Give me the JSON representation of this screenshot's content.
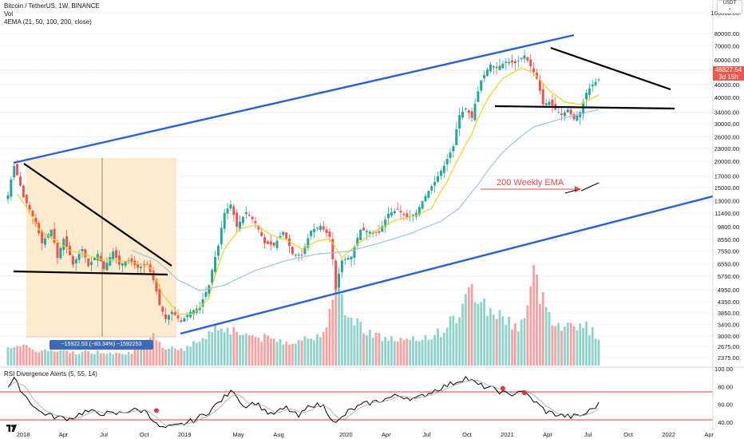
{
  "header": {
    "title": "Bitcoin / TetherUS, 1W, BINANCE",
    "vol_label": "Vol",
    "ema_label": "4EMA (21, 50, 100, 200, close)",
    "currency_button": "USDT"
  },
  "price_tag": {
    "value": "46827.54",
    "countdown": "3d 15h",
    "color": "#e8594f"
  },
  "measure": {
    "label": "−15922.53 (−83.34%) −1592253"
  },
  "annotation": {
    "ema_text": "200 Weekly EMA"
  },
  "rsi_panel": {
    "title": "RSI Divergence Alerts (5, 55, 14)"
  },
  "colors": {
    "up": "#26a69a",
    "down": "#ef5350",
    "channel": "#2a5fd6",
    "ema21": "#f2d024",
    "ema_long": "#9cc3e6",
    "trend": "#000000",
    "measure_box": "#fde8c8",
    "rsi_line": "#e53935"
  },
  "chart_data": {
    "type": "candlestick",
    "title": "Bitcoin / TetherUS, 1W, BINANCE",
    "y_scale": "log",
    "ylim": [
      2175,
      115000
    ],
    "x_range": [
      "2017-12",
      "2022-05"
    ],
    "x_ticks": [
      "2018",
      "Apr",
      "Jul",
      "Oct",
      "2019",
      "May",
      "Aug",
      "2020",
      "Apr",
      "Jul",
      "Oct",
      "2021",
      "Apr",
      "Jul",
      "Oct",
      "2022",
      "Apr"
    ],
    "y_ticks": [
      "100000.00",
      "80000.00",
      "70000.00",
      "60000.00",
      "52000.00",
      "46000.00",
      "40000.00",
      "34000.00",
      "30000.00",
      "26000.00",
      "23000.00",
      "20000.00",
      "17000.00",
      "15000.00",
      "13000.00",
      "11400.00",
      "9800.00",
      "8550.00",
      "7550.00",
      "6550.00",
      "5750.00",
      "4950.00",
      "4350.00",
      "3850.00",
      "3400.00",
      "3000.00",
      "2675.00",
      "2375.00"
    ],
    "last_price": 46827.54,
    "series": [
      {
        "name": "Bitcoin / TetherUS",
        "type": "ohlc",
        "anchors": [
          [
            0,
            13800
          ],
          [
            2,
            19000
          ],
          [
            5,
            13500
          ],
          [
            8,
            11000
          ],
          [
            11,
            8200
          ],
          [
            14,
            9500
          ],
          [
            16,
            7000
          ],
          [
            18,
            8600
          ],
          [
            21,
            6500
          ],
          [
            24,
            7700
          ],
          [
            26,
            6400
          ],
          [
            29,
            7300
          ],
          [
            31,
            6200
          ],
          [
            34,
            7500
          ],
          [
            36,
            6500
          ],
          [
            39,
            6800
          ],
          [
            42,
            6300
          ],
          [
            45,
            6500
          ],
          [
            47,
            5500
          ],
          [
            49,
            4200
          ],
          [
            51,
            3600
          ],
          [
            53,
            3900
          ],
          [
            56,
            3500
          ],
          [
            59,
            3900
          ],
          [
            62,
            4100
          ],
          [
            65,
            5200
          ],
          [
            68,
            8000
          ],
          [
            70,
            11400
          ],
          [
            72,
            12500
          ],
          [
            74,
            9800
          ],
          [
            77,
            11500
          ],
          [
            80,
            10200
          ],
          [
            83,
            8200
          ],
          [
            86,
            8000
          ],
          [
            89,
            9300
          ],
          [
            92,
            7300
          ],
          [
            95,
            7200
          ],
          [
            98,
            9400
          ],
          [
            101,
            9900
          ],
          [
            104,
            8800
          ],
          [
            106,
            5000
          ],
          [
            108,
            6800
          ],
          [
            111,
            7100
          ],
          [
            114,
            9500
          ],
          [
            117,
            9300
          ],
          [
            120,
            9200
          ],
          [
            123,
            11300
          ],
          [
            126,
            11800
          ],
          [
            129,
            10800
          ],
          [
            132,
            11400
          ],
          [
            135,
            13700
          ],
          [
            138,
            16000
          ],
          [
            141,
            19000
          ],
          [
            144,
            23500
          ],
          [
            146,
            33000
          ],
          [
            148,
            35500
          ],
          [
            150,
            32000
          ],
          [
            153,
            48000
          ],
          [
            156,
            57000
          ],
          [
            158,
            55000
          ],
          [
            161,
            59000
          ],
          [
            164,
            58000
          ],
          [
            167,
            63000
          ],
          [
            169,
            56000
          ],
          [
            171,
            49000
          ],
          [
            173,
            37000
          ],
          [
            175,
            38000
          ],
          [
            177,
            35000
          ],
          [
            179,
            33000
          ],
          [
            181,
            35000
          ],
          [
            183,
            31500
          ],
          [
            185,
            34000
          ],
          [
            187,
            42000
          ],
          [
            189,
            46000
          ],
          [
            191,
            48500
          ]
        ]
      },
      {
        "name": "EMA 21",
        "type": "line",
        "anchors": [
          [
            3,
            14000
          ],
          [
            10,
            9500
          ],
          [
            20,
            7600
          ],
          [
            30,
            6900
          ],
          [
            40,
            6700
          ],
          [
            46,
            6300
          ],
          [
            50,
            4700
          ],
          [
            55,
            3800
          ],
          [
            60,
            3800
          ],
          [
            65,
            4500
          ],
          [
            70,
            7700
          ],
          [
            75,
            9600
          ],
          [
            80,
            10000
          ],
          [
            85,
            9000
          ],
          [
            90,
            8500
          ],
          [
            95,
            7700
          ],
          [
            100,
            8400
          ],
          [
            104,
            8600
          ],
          [
            108,
            7000
          ],
          [
            112,
            7900
          ],
          [
            118,
            9200
          ],
          [
            125,
            10500
          ],
          [
            132,
            11100
          ],
          [
            137,
            12000
          ],
          [
            142,
            16000
          ],
          [
            146,
            21000
          ],
          [
            150,
            27000
          ],
          [
            155,
            39000
          ],
          [
            160,
            49000
          ],
          [
            166,
            55000
          ],
          [
            170,
            52000
          ],
          [
            175,
            43000
          ],
          [
            180,
            38000
          ],
          [
            185,
            37000
          ],
          [
            191,
            41000
          ]
        ]
      },
      {
        "name": "EMA 200",
        "type": "line",
        "anchors": [
          [
            40,
            7600
          ],
          [
            48,
            6800
          ],
          [
            55,
            5500
          ],
          [
            62,
            4900
          ],
          [
            70,
            5200
          ],
          [
            80,
            6100
          ],
          [
            90,
            6800
          ],
          [
            100,
            7300
          ],
          [
            110,
            7500
          ],
          [
            120,
            8200
          ],
          [
            130,
            9100
          ],
          [
            140,
            10400
          ],
          [
            146,
            12000
          ],
          [
            152,
            15500
          ],
          [
            160,
            22000
          ],
          [
            170,
            29000
          ],
          [
            180,
            32000
          ],
          [
            191,
            35000
          ]
        ]
      },
      {
        "name": "Vol",
        "type": "histogram",
        "anchors": [
          [
            0,
            0.22
          ],
          [
            10,
            0.16
          ],
          [
            20,
            0.14
          ],
          [
            30,
            0.14
          ],
          [
            40,
            0.14
          ],
          [
            44,
            0.2
          ],
          [
            47,
            0.3
          ],
          [
            50,
            0.2
          ],
          [
            58,
            0.18
          ],
          [
            68,
            0.42
          ],
          [
            74,
            0.36
          ],
          [
            80,
            0.3
          ],
          [
            90,
            0.25
          ],
          [
            100,
            0.3
          ],
          [
            105,
            0.6
          ],
          [
            106,
            0.95
          ],
          [
            110,
            0.5
          ],
          [
            120,
            0.3
          ],
          [
            130,
            0.25
          ],
          [
            140,
            0.35
          ],
          [
            146,
            0.55
          ],
          [
            150,
            0.8
          ],
          [
            155,
            0.6
          ],
          [
            160,
            0.5
          ],
          [
            165,
            0.4
          ],
          [
            168,
            0.6
          ],
          [
            170,
            0.95
          ],
          [
            172,
            0.75
          ],
          [
            176,
            0.5
          ],
          [
            180,
            0.4
          ],
          [
            185,
            0.45
          ],
          [
            191,
            0.3
          ]
        ]
      },
      {
        "name": "RSI Divergence Alerts",
        "type": "line",
        "ylim": [
          30,
          100
        ],
        "y_ticks": [
          "100.00",
          "80.00",
          "60.00",
          "40.00"
        ],
        "levels": [
          70,
          35
        ],
        "anchors": [
          [
            0,
            80
          ],
          [
            2,
            88
          ],
          [
            5,
            72
          ],
          [
            10,
            52
          ],
          [
            15,
            46
          ],
          [
            20,
            44
          ],
          [
            25,
            52
          ],
          [
            30,
            50
          ],
          [
            35,
            49
          ],
          [
            40,
            54
          ],
          [
            45,
            52
          ],
          [
            48,
            37
          ],
          [
            50,
            33
          ],
          [
            55,
            36
          ],
          [
            60,
            42
          ],
          [
            65,
            52
          ],
          [
            70,
            68
          ],
          [
            73,
            76
          ],
          [
            76,
            58
          ],
          [
            80,
            62
          ],
          [
            85,
            48
          ],
          [
            90,
            56
          ],
          [
            94,
            46
          ],
          [
            98,
            60
          ],
          [
            102,
            58
          ],
          [
            106,
            38
          ],
          [
            110,
            52
          ],
          [
            115,
            60
          ],
          [
            120,
            64
          ],
          [
            126,
            70
          ],
          [
            132,
            66
          ],
          [
            138,
            76
          ],
          [
            144,
            84
          ],
          [
            148,
            90
          ],
          [
            152,
            82
          ],
          [
            158,
            76
          ],
          [
            162,
            70
          ],
          [
            166,
            76
          ],
          [
            170,
            64
          ],
          [
            174,
            52
          ],
          [
            178,
            48
          ],
          [
            182,
            46
          ],
          [
            186,
            48
          ],
          [
            191,
            60
          ]
        ],
        "markers": [
          [
            48,
            53
          ],
          [
            160,
            78
          ],
          [
            167,
            73
          ]
        ]
      }
    ]
  }
}
